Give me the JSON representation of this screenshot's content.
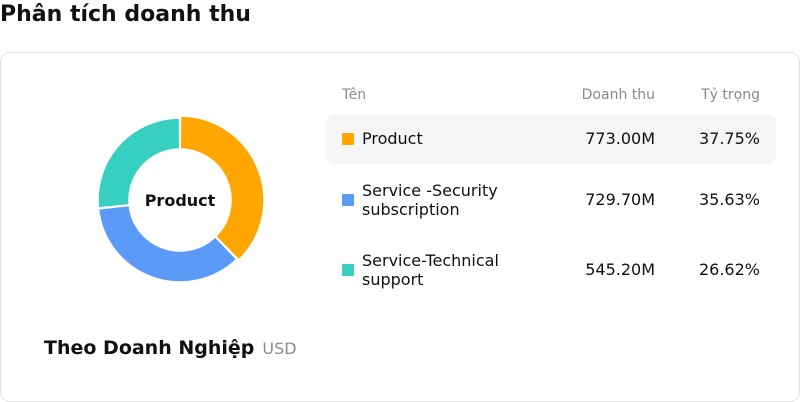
{
  "page": {
    "title": "Phân tích doanh thu"
  },
  "summary": {
    "caption": "Theo Doanh Nghiệp",
    "unit": "USD"
  },
  "table": {
    "columns": {
      "name": "Tên",
      "revenue": "Doanh thu",
      "share": "Tỷ trọng"
    },
    "rows": [
      {
        "name": "Product",
        "revenue": "773.00M",
        "share": "37.75%",
        "color": "#FFA600",
        "selected": true
      },
      {
        "name": "Service -Security subscription",
        "revenue": "729.70M",
        "share": "35.63%",
        "color": "#5B9BF7",
        "selected": false
      },
      {
        "name": "Service-Technical support",
        "revenue": "545.20M",
        "share": "26.62%",
        "color": "#36CFC0",
        "selected": false
      }
    ]
  },
  "chart_data": {
    "type": "pie",
    "center_label": "Product",
    "categories": [
      "Product",
      "Service -Security subscription",
      "Service-Technical support"
    ],
    "values": [
      773.0,
      729.7,
      545.2
    ],
    "shares": [
      37.75,
      35.63,
      26.62
    ],
    "colors": [
      "#FFA600",
      "#5B9BF7",
      "#36CFC0"
    ],
    "highlighted": "Product"
  }
}
